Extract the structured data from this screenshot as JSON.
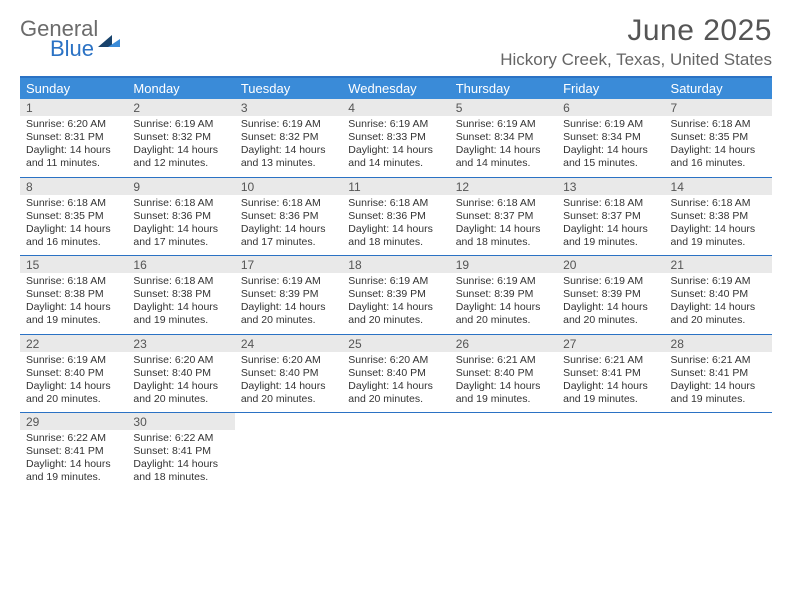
{
  "logo": {
    "line1": "General",
    "line2": "Blue"
  },
  "title": "June 2025",
  "location": "Hickory Creek, Texas, United States",
  "colors": {
    "header_bg": "#3a8bd8",
    "border": "#2b72c4",
    "daynum_bg": "#e9e9e9",
    "text": "#333333",
    "title_text": "#555555",
    "location_text": "#666666",
    "logo_gray": "#6b6b6b",
    "logo_blue": "#2b72c4",
    "background": "#ffffff"
  },
  "typography": {
    "title_fontsize": 30,
    "location_fontsize": 17,
    "dayheader_fontsize": 13,
    "daynum_fontsize": 12,
    "body_fontsize": 10.5
  },
  "day_headers": [
    "Sunday",
    "Monday",
    "Tuesday",
    "Wednesday",
    "Thursday",
    "Friday",
    "Saturday"
  ],
  "weeks": [
    [
      {
        "n": "1",
        "sunrise": "Sunrise: 6:20 AM",
        "sunset": "Sunset: 8:31 PM",
        "d1": "Daylight: 14 hours",
        "d2": "and 11 minutes."
      },
      {
        "n": "2",
        "sunrise": "Sunrise: 6:19 AM",
        "sunset": "Sunset: 8:32 PM",
        "d1": "Daylight: 14 hours",
        "d2": "and 12 minutes."
      },
      {
        "n": "3",
        "sunrise": "Sunrise: 6:19 AM",
        "sunset": "Sunset: 8:32 PM",
        "d1": "Daylight: 14 hours",
        "d2": "and 13 minutes."
      },
      {
        "n": "4",
        "sunrise": "Sunrise: 6:19 AM",
        "sunset": "Sunset: 8:33 PM",
        "d1": "Daylight: 14 hours",
        "d2": "and 14 minutes."
      },
      {
        "n": "5",
        "sunrise": "Sunrise: 6:19 AM",
        "sunset": "Sunset: 8:34 PM",
        "d1": "Daylight: 14 hours",
        "d2": "and 14 minutes."
      },
      {
        "n": "6",
        "sunrise": "Sunrise: 6:19 AM",
        "sunset": "Sunset: 8:34 PM",
        "d1": "Daylight: 14 hours",
        "d2": "and 15 minutes."
      },
      {
        "n": "7",
        "sunrise": "Sunrise: 6:18 AM",
        "sunset": "Sunset: 8:35 PM",
        "d1": "Daylight: 14 hours",
        "d2": "and 16 minutes."
      }
    ],
    [
      {
        "n": "8",
        "sunrise": "Sunrise: 6:18 AM",
        "sunset": "Sunset: 8:35 PM",
        "d1": "Daylight: 14 hours",
        "d2": "and 16 minutes."
      },
      {
        "n": "9",
        "sunrise": "Sunrise: 6:18 AM",
        "sunset": "Sunset: 8:36 PM",
        "d1": "Daylight: 14 hours",
        "d2": "and 17 minutes."
      },
      {
        "n": "10",
        "sunrise": "Sunrise: 6:18 AM",
        "sunset": "Sunset: 8:36 PM",
        "d1": "Daylight: 14 hours",
        "d2": "and 17 minutes."
      },
      {
        "n": "11",
        "sunrise": "Sunrise: 6:18 AM",
        "sunset": "Sunset: 8:36 PM",
        "d1": "Daylight: 14 hours",
        "d2": "and 18 minutes."
      },
      {
        "n": "12",
        "sunrise": "Sunrise: 6:18 AM",
        "sunset": "Sunset: 8:37 PM",
        "d1": "Daylight: 14 hours",
        "d2": "and 18 minutes."
      },
      {
        "n": "13",
        "sunrise": "Sunrise: 6:18 AM",
        "sunset": "Sunset: 8:37 PM",
        "d1": "Daylight: 14 hours",
        "d2": "and 19 minutes."
      },
      {
        "n": "14",
        "sunrise": "Sunrise: 6:18 AM",
        "sunset": "Sunset: 8:38 PM",
        "d1": "Daylight: 14 hours",
        "d2": "and 19 minutes."
      }
    ],
    [
      {
        "n": "15",
        "sunrise": "Sunrise: 6:18 AM",
        "sunset": "Sunset: 8:38 PM",
        "d1": "Daylight: 14 hours",
        "d2": "and 19 minutes."
      },
      {
        "n": "16",
        "sunrise": "Sunrise: 6:18 AM",
        "sunset": "Sunset: 8:38 PM",
        "d1": "Daylight: 14 hours",
        "d2": "and 19 minutes."
      },
      {
        "n": "17",
        "sunrise": "Sunrise: 6:19 AM",
        "sunset": "Sunset: 8:39 PM",
        "d1": "Daylight: 14 hours",
        "d2": "and 20 minutes."
      },
      {
        "n": "18",
        "sunrise": "Sunrise: 6:19 AM",
        "sunset": "Sunset: 8:39 PM",
        "d1": "Daylight: 14 hours",
        "d2": "and 20 minutes."
      },
      {
        "n": "19",
        "sunrise": "Sunrise: 6:19 AM",
        "sunset": "Sunset: 8:39 PM",
        "d1": "Daylight: 14 hours",
        "d2": "and 20 minutes."
      },
      {
        "n": "20",
        "sunrise": "Sunrise: 6:19 AM",
        "sunset": "Sunset: 8:39 PM",
        "d1": "Daylight: 14 hours",
        "d2": "and 20 minutes."
      },
      {
        "n": "21",
        "sunrise": "Sunrise: 6:19 AM",
        "sunset": "Sunset: 8:40 PM",
        "d1": "Daylight: 14 hours",
        "d2": "and 20 minutes."
      }
    ],
    [
      {
        "n": "22",
        "sunrise": "Sunrise: 6:19 AM",
        "sunset": "Sunset: 8:40 PM",
        "d1": "Daylight: 14 hours",
        "d2": "and 20 minutes."
      },
      {
        "n": "23",
        "sunrise": "Sunrise: 6:20 AM",
        "sunset": "Sunset: 8:40 PM",
        "d1": "Daylight: 14 hours",
        "d2": "and 20 minutes."
      },
      {
        "n": "24",
        "sunrise": "Sunrise: 6:20 AM",
        "sunset": "Sunset: 8:40 PM",
        "d1": "Daylight: 14 hours",
        "d2": "and 20 minutes."
      },
      {
        "n": "25",
        "sunrise": "Sunrise: 6:20 AM",
        "sunset": "Sunset: 8:40 PM",
        "d1": "Daylight: 14 hours",
        "d2": "and 20 minutes."
      },
      {
        "n": "26",
        "sunrise": "Sunrise: 6:21 AM",
        "sunset": "Sunset: 8:40 PM",
        "d1": "Daylight: 14 hours",
        "d2": "and 19 minutes."
      },
      {
        "n": "27",
        "sunrise": "Sunrise: 6:21 AM",
        "sunset": "Sunset: 8:41 PM",
        "d1": "Daylight: 14 hours",
        "d2": "and 19 minutes."
      },
      {
        "n": "28",
        "sunrise": "Sunrise: 6:21 AM",
        "sunset": "Sunset: 8:41 PM",
        "d1": "Daylight: 14 hours",
        "d2": "and 19 minutes."
      }
    ],
    [
      {
        "n": "29",
        "sunrise": "Sunrise: 6:22 AM",
        "sunset": "Sunset: 8:41 PM",
        "d1": "Daylight: 14 hours",
        "d2": "and 19 minutes."
      },
      {
        "n": "30",
        "sunrise": "Sunrise: 6:22 AM",
        "sunset": "Sunset: 8:41 PM",
        "d1": "Daylight: 14 hours",
        "d2": "and 18 minutes."
      },
      null,
      null,
      null,
      null,
      null
    ]
  ]
}
